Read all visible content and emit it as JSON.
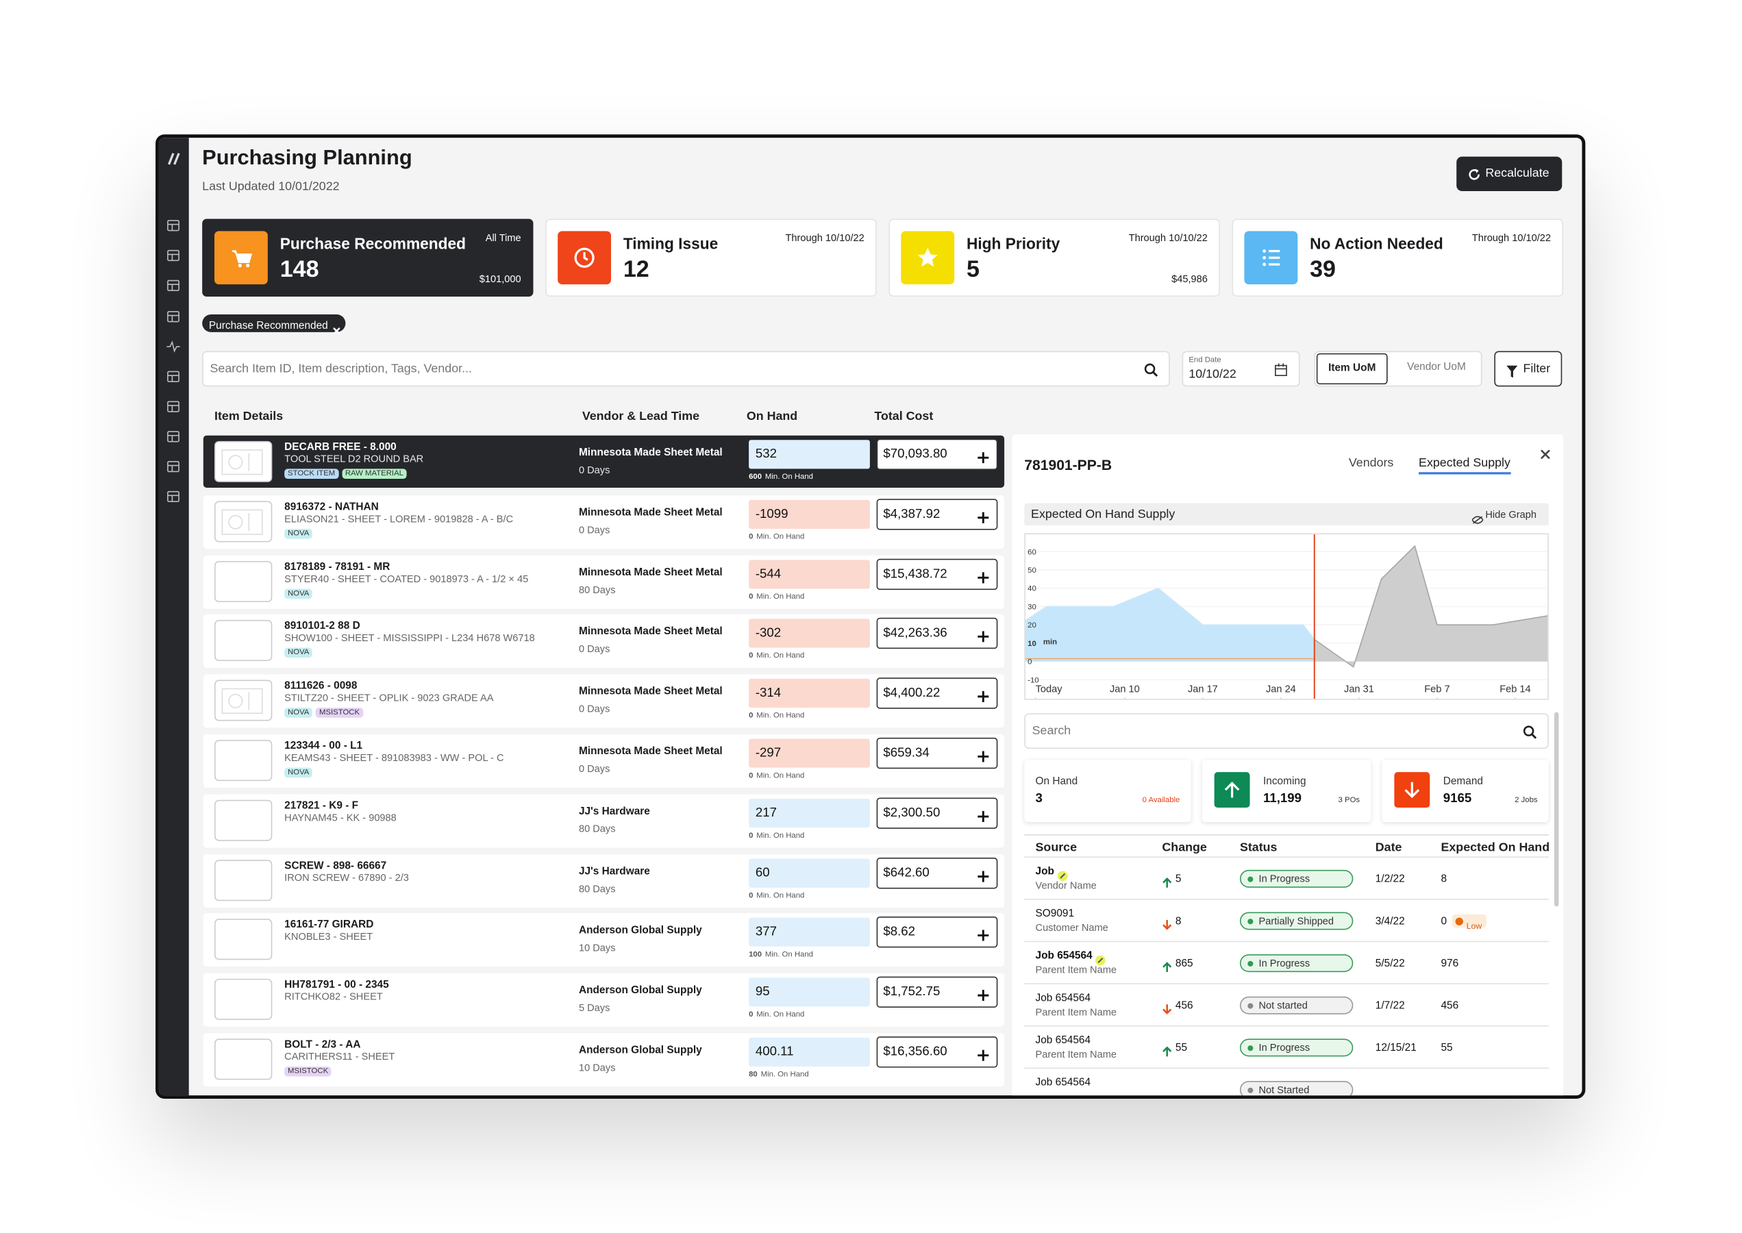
{
  "header": {
    "title": "Purchasing Planning",
    "subtitle": "Last Updated 10/01/2022",
    "action": "Recalculate"
  },
  "cards": [
    {
      "title": "Purchase Recommended",
      "count": "148",
      "period": "All Time",
      "amount": "$101,000",
      "color": "#f7931e",
      "selected": true
    },
    {
      "title": "Timing Issue",
      "count": "12",
      "period": "Through 10/10/22",
      "color": "#f0441a",
      "selected": false
    },
    {
      "title": "High Priority",
      "count": "5",
      "period": "Through 10/10/22",
      "amount": "$45,986",
      "color": "#f5df00",
      "selected": false
    },
    {
      "title": "No Action Needed",
      "count": "39",
      "period": "Through 10/10/22",
      "color": "#5bb8f2",
      "selected": false
    }
  ],
  "filter_chips": [
    "Purchase Recommended"
  ],
  "toolbar": {
    "search_placeholder": "Search Item ID, Item description, Tags, Vendor...",
    "end_date_label": "End Date",
    "end_date": "10/10/22",
    "uom_options": [
      "Item UoM",
      "Vendor UoM"
    ],
    "active_uom": 0,
    "filter": "Filter"
  },
  "table": {
    "columns": [
      "Item Details",
      "Vendor & Lead Time",
      "On Hand",
      "Total Cost"
    ],
    "min_label": "Min. On Hand",
    "selected_row": 0,
    "rows": [
      {
        "item_id": "DECARB FREE - 8.000",
        "description": "TOOL STEEL D2 ROUND BAR",
        "tags": [
          {
            "label": "STOCK ITEM",
            "color": "#b9dcf7"
          },
          {
            "label": "RAW MATERIAL",
            "color": "#b4efc6"
          }
        ],
        "vendor": "Minnesota Made Sheet Metal",
        "lead_time": "0 Days",
        "on_hand": "532",
        "min_on_hand": "600",
        "total_cost": "$70,093.80"
      },
      {
        "item_id": "8916372 - NATHAN",
        "description": "ELIASON21 - SHEET - LOREM - 9019828 - A - B/C",
        "tags": [
          {
            "label": "NOVA",
            "color": "#c6eef0"
          }
        ],
        "vendor": "Minnesota Made Sheet Metal",
        "lead_time": "0 Days",
        "on_hand": "-1099",
        "min_on_hand": "0",
        "total_cost": "$4,387.92"
      },
      {
        "item_id": "8178189 - 78191 - MR",
        "description": "STYER40 - SHEET - COATED - 9018973 - A - 1/2 × 45",
        "tags": [
          {
            "label": "NOVA",
            "color": "#c6eef0"
          }
        ],
        "vendor": "Minnesota Made Sheet Metal",
        "lead_time": "80 Days",
        "on_hand": "-544",
        "min_on_hand": "0",
        "total_cost": "$15,438.72"
      },
      {
        "item_id": "8910101-2 88 D",
        "description": "SHOW100 - SHEET - MISSISSIPPI - L234 H678 W6718",
        "tags": [
          {
            "label": "NOVA",
            "color": "#c6eef0"
          }
        ],
        "vendor": "Minnesota Made Sheet Metal",
        "lead_time": "0 Days",
        "on_hand": "-302",
        "min_on_hand": "0",
        "total_cost": "$42,263.36"
      },
      {
        "item_id": "8111626 - 0098",
        "description": "STILTZ20 - SHEET - OPLIK - 9023 GRADE AA",
        "tags": [
          {
            "label": "NOVA",
            "color": "#c6eef0"
          },
          {
            "label": "MSISTOCK",
            "color": "#e5d3f5"
          }
        ],
        "vendor": "Minnesota Made Sheet Metal",
        "lead_time": "0 Days",
        "on_hand": "-314",
        "min_on_hand": "0",
        "total_cost": "$4,400.22"
      },
      {
        "item_id": "123344 - 00 - L1",
        "description": "KEAMS43 - SHEET - 891083983 - WW - POL - C",
        "tags": [
          {
            "label": "NOVA",
            "color": "#c6eef0"
          }
        ],
        "vendor": "Minnesota Made Sheet Metal",
        "lead_time": "0 Days",
        "on_hand": "-297",
        "min_on_hand": "0",
        "total_cost": "$659.34"
      },
      {
        "item_id": "217821 - K9 - F",
        "description": "HAYNAM45 - KK - 90988",
        "tags": [],
        "vendor": "JJ's Hardware",
        "lead_time": "80 Days",
        "on_hand": "217",
        "min_on_hand": "0",
        "total_cost": "$2,300.50"
      },
      {
        "item_id": "SCREW - 898- 66667",
        "description": "IRON SCREW - 67890 - 2/3",
        "tags": [],
        "vendor": "JJ's Hardware",
        "lead_time": "80 Days",
        "on_hand": "60",
        "min_on_hand": "0",
        "total_cost": "$642.60"
      },
      {
        "item_id": "16161-77 GIRARD",
        "description": "KNOBLE3 - SHEET",
        "tags": [],
        "vendor": "Anderson Global Supply",
        "lead_time": "10 Days",
        "on_hand": "377",
        "min_on_hand": "100",
        "total_cost": "$8.62"
      },
      {
        "item_id": "HH781791 - 00 - 2345",
        "description": "RITCHKO82 - SHEET",
        "tags": [],
        "vendor": "Anderson Global Supply",
        "lead_time": "5 Days",
        "on_hand": "95",
        "min_on_hand": "0",
        "total_cost": "$1,752.75"
      },
      {
        "item_id": "BOLT - 2/3 - AA",
        "description": "CARITHERS11 - SHEET",
        "tags": [
          {
            "label": "MSISTOCK",
            "color": "#e5d3f5"
          }
        ],
        "vendor": "Anderson Global Supply",
        "lead_time": "10 Days",
        "on_hand": "400.11",
        "min_on_hand": "80",
        "total_cost": "$16,356.60"
      }
    ]
  },
  "panel": {
    "item_id": "781901-PP-B",
    "tabs": [
      "Vendors",
      "Expected Supply"
    ],
    "active_tab": 1,
    "chart_title": "Expected On Hand Supply",
    "hide_graph": "Hide Graph",
    "chart": {
      "type": "area",
      "ylim": [
        -21,
        70
      ],
      "yticks": [
        -10,
        0,
        10,
        20,
        30,
        40,
        50,
        60
      ],
      "xlim": [
        -1,
        46
      ],
      "xticks": [
        {
          "value": 0,
          "label": "Today"
        },
        {
          "value": 8,
          "label": "Jan 10"
        },
        {
          "value": 15,
          "label": "Jan 17"
        },
        {
          "value": 22,
          "label": "Jan 24"
        },
        {
          "value": 29,
          "label": "Jan 31"
        },
        {
          "value": 36,
          "label": "Feb 7"
        },
        {
          "value": 43,
          "label": "Feb 14"
        }
      ],
      "min_label": "min",
      "min_value": 1.5,
      "marker": 25,
      "series": [
        {
          "color": "#bfe3fb",
          "x": [
            -1,
            1,
            7,
            11,
            15,
            24,
            25
          ],
          "values": [
            22,
            30,
            30,
            40,
            20,
            20,
            12
          ]
        },
        {
          "color": "#c9c9c9",
          "x": [
            25,
            28.5,
            31,
            34,
            36,
            41,
            46
          ],
          "values": [
            12,
            -3,
            45,
            63,
            20,
            20,
            25
          ]
        }
      ]
    },
    "search_placeholder": "Search",
    "summary": [
      {
        "label": "On Hand",
        "value": "3",
        "note": "0 Available",
        "note_color": "#e0401a"
      },
      {
        "label": "Incoming",
        "value": "11,199",
        "note": "3 POs",
        "color": "#0d8a55",
        "icon": "up"
      },
      {
        "label": "Demand",
        "value": "9165",
        "note": "2 Jobs",
        "color": "#f0410f",
        "icon": "down"
      }
    ],
    "supply_table": {
      "columns": [
        "Source",
        "Change",
        "Status",
        "Date",
        "Expected On Hand"
      ],
      "rows": [
        {
          "source": "Job",
          "edit": true,
          "detail": "Vendor Name",
          "change": "5",
          "direction": "up",
          "status": "In Progress",
          "tone": "green",
          "date": "1/2/22",
          "expected": "8"
        },
        {
          "source": "SO9091",
          "detail": "Customer Name",
          "change": "8",
          "direction": "down",
          "status": "Partially Shipped",
          "tone": "green",
          "date": "3/4/22",
          "expected": "0",
          "flag": "Low"
        },
        {
          "source": "Job 654564",
          "edit": true,
          "detail": "Parent Item Name",
          "change": "865",
          "direction": "up",
          "status": "In Progress",
          "tone": "green",
          "date": "5/5/22",
          "expected": "976"
        },
        {
          "source": "Job 654564",
          "detail": "Parent Item Name",
          "change": "456",
          "direction": "down",
          "status": "Not started",
          "tone": "gray",
          "date": "1/7/22",
          "expected": "456"
        },
        {
          "source": "Job 654564",
          "detail": "Parent Item Name",
          "change": "55",
          "direction": "up",
          "status": "In Progress",
          "tone": "green",
          "date": "12/15/21",
          "expected": "55"
        },
        {
          "source": "Job 654564",
          "status": "Not Started",
          "tone": "gray"
        }
      ]
    }
  }
}
